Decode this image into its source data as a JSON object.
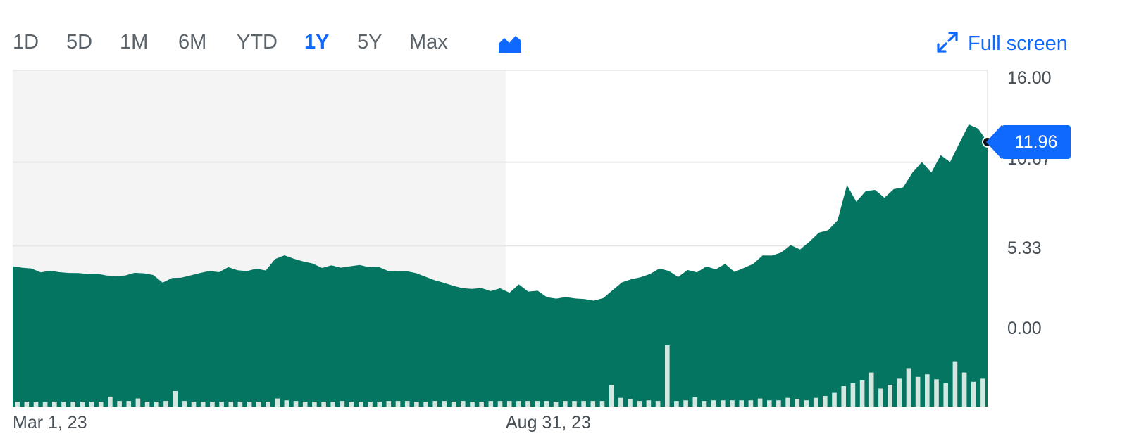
{
  "toolbar": {
    "ranges": [
      "1D",
      "5D",
      "1M",
      "6M",
      "YTD",
      "1Y",
      "5Y",
      "Max"
    ],
    "active_range": "1Y",
    "chart_type_icon": "area-chart-icon",
    "fullscreen_icon": "expand-arrows-icon",
    "fullscreen_label": "Full screen"
  },
  "colors": {
    "accent": "#0f69ff",
    "area_fill": "#047560",
    "volume_bar": "#d2e7e0",
    "highlight_band": "#f4f4f4",
    "grid": "#e6e6e6",
    "tick_text": "#464e56",
    "tab_text": "#5b636a"
  },
  "chart_data": {
    "type": "area",
    "xlabel": "",
    "ylabel": "",
    "x_tick_labels": [
      "Mar 1, 23",
      "Aug 31, 23"
    ],
    "y_tick_labels": [
      "16.00",
      "10.67",
      "5.33",
      "0.00"
    ],
    "ylim": [
      0,
      16
    ],
    "grid": true,
    "last_price": "11.96",
    "price_series": [
      4.02,
      3.93,
      3.88,
      3.63,
      3.73,
      3.64,
      3.59,
      3.58,
      3.53,
      3.55,
      3.43,
      3.4,
      3.43,
      3.6,
      3.57,
      3.46,
      2.97,
      3.27,
      3.29,
      3.44,
      3.59,
      3.72,
      3.64,
      3.96,
      3.76,
      3.71,
      3.87,
      3.75,
      4.48,
      4.72,
      4.5,
      4.33,
      4.2,
      3.91,
      4.08,
      3.93,
      4.02,
      4.1,
      3.96,
      3.99,
      3.73,
      3.7,
      3.71,
      3.58,
      3.36,
      3.13,
      2.96,
      2.77,
      2.62,
      2.57,
      2.63,
      2.43,
      2.61,
      2.33,
      2.86,
      2.4,
      2.46,
      2.04,
      1.95,
      2.05,
      1.96,
      1.92,
      1.82,
      1.98,
      2.49,
      2.99,
      3.19,
      3.32,
      3.53,
      3.88,
      3.72,
      3.34,
      3.78,
      3.63,
      4.01,
      3.82,
      4.17,
      3.66,
      3.91,
      4.17,
      4.71,
      4.7,
      4.9,
      5.37,
      5.09,
      5.59,
      6.16,
      6.33,
      6.96,
      9.21,
      8.14,
      8.82,
      8.9,
      8.4,
      8.95,
      9.06,
      10.01,
      10.68,
      10.01,
      11.12,
      10.68,
      11.89,
      13.08,
      12.81,
      11.96
    ],
    "volume_relative": [
      0.08,
      0.08,
      0.08,
      0.07,
      0.08,
      0.08,
      0.08,
      0.08,
      0.08,
      0.08,
      0.16,
      0.09,
      0.09,
      0.13,
      0.08,
      0.08,
      0.09,
      0.25,
      0.09,
      0.08,
      0.08,
      0.08,
      0.08,
      0.08,
      0.08,
      0.08,
      0.08,
      0.08,
      0.13,
      0.1,
      0.09,
      0.08,
      0.08,
      0.08,
      0.08,
      0.09,
      0.08,
      0.08,
      0.08,
      0.08,
      0.09,
      0.09,
      0.09,
      0.08,
      0.08,
      0.09,
      0.09,
      0.08,
      0.09,
      0.08,
      0.08,
      0.09,
      0.09,
      0.09,
      0.09,
      0.09,
      0.09,
      0.09,
      0.08,
      0.09,
      0.09,
      0.09,
      0.09,
      0.09,
      0.35,
      0.14,
      0.12,
      0.09,
      0.1,
      0.09,
      0.99,
      0.09,
      0.1,
      0.15,
      0.09,
      0.1,
      0.1,
      0.1,
      0.1,
      0.1,
      0.13,
      0.1,
      0.1,
      0.14,
      0.12,
      0.1,
      0.14,
      0.17,
      0.22,
      0.33,
      0.38,
      0.42,
      0.55,
      0.29,
      0.35,
      0.45,
      0.62,
      0.48,
      0.52,
      0.44,
      0.38,
      0.72,
      0.55,
      0.4,
      0.45
    ]
  }
}
